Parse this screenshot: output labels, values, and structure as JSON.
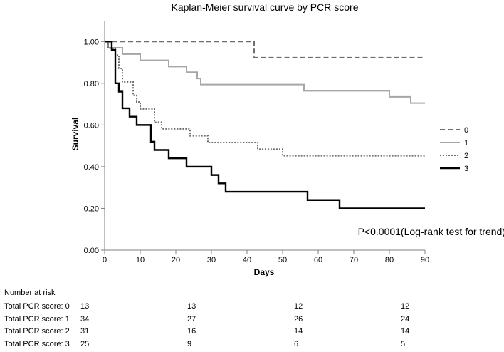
{
  "chart_data": {
    "type": "line",
    "title": "Kaplan-Meier survival curve by PCR score",
    "xlabel": "Days",
    "ylabel": "Survival",
    "xlim": [
      0,
      90
    ],
    "ylim": [
      0,
      1.1
    ],
    "xticks": [
      "0",
      "10",
      "20",
      "30",
      "40",
      "50",
      "60",
      "70",
      "80",
      "90"
    ],
    "yticks": [
      "0.00",
      "0.20",
      "0.40",
      "0.60",
      "0.80",
      "1.00"
    ],
    "xtick_values": [
      0,
      10,
      20,
      30,
      40,
      50,
      60,
      70,
      80,
      90
    ],
    "ytick_values": [
      0,
      0.2,
      0.4,
      0.6,
      0.8,
      1.0
    ],
    "grid": false,
    "legend_position": "right",
    "annotation": "P<0.0001(Log-rank test for trend)",
    "series": [
      {
        "name": "0",
        "color": "#6e6e6e",
        "dash": "dashed",
        "steps": [
          [
            0,
            1.0
          ],
          [
            42,
            0.923
          ],
          [
            90,
            0.923
          ]
        ]
      },
      {
        "name": "1",
        "color": "#a6a6a6",
        "dash": "solid",
        "steps": [
          [
            0,
            1.0
          ],
          [
            1,
            0.97
          ],
          [
            5,
            0.94
          ],
          [
            10,
            0.91
          ],
          [
            18,
            0.88
          ],
          [
            23,
            0.853
          ],
          [
            26,
            0.823
          ],
          [
            27,
            0.794
          ],
          [
            28,
            0.794
          ],
          [
            56,
            0.764
          ],
          [
            80,
            0.735
          ],
          [
            86,
            0.705
          ],
          [
            90,
            0.705
          ]
        ]
      },
      {
        "name": "2",
        "color": "#6e6e6e",
        "dash": "dotted",
        "steps": [
          [
            0,
            1.0
          ],
          [
            1,
            0.968
          ],
          [
            3,
            0.935
          ],
          [
            4,
            0.871
          ],
          [
            5,
            0.806
          ],
          [
            8,
            0.742
          ],
          [
            9,
            0.71
          ],
          [
            10,
            0.677
          ],
          [
            14,
            0.613
          ],
          [
            16,
            0.581
          ],
          [
            24,
            0.548
          ],
          [
            29,
            0.516
          ],
          [
            43,
            0.484
          ],
          [
            50,
            0.452
          ],
          [
            90,
            0.452
          ]
        ]
      },
      {
        "name": "3",
        "color": "#000000",
        "dash": "solid",
        "steps": [
          [
            0,
            1.0
          ],
          [
            2,
            0.96
          ],
          [
            3,
            0.8
          ],
          [
            4,
            0.76
          ],
          [
            5,
            0.68
          ],
          [
            7,
            0.64
          ],
          [
            9,
            0.6
          ],
          [
            13,
            0.52
          ],
          [
            14,
            0.48
          ],
          [
            18,
            0.44
          ],
          [
            23,
            0.4
          ],
          [
            30,
            0.36
          ],
          [
            32,
            0.32
          ],
          [
            34,
            0.28
          ],
          [
            57,
            0.24
          ],
          [
            66,
            0.2
          ],
          [
            90,
            0.2
          ]
        ]
      }
    ]
  },
  "risk_table": {
    "header": "Number at risk",
    "time_points": [
      0,
      30,
      60,
      90
    ],
    "rows": [
      {
        "label": "Total PCR score: 0",
        "values": [
          "13",
          "13",
          "12",
          "12"
        ]
      },
      {
        "label": "Total PCR score: 1",
        "values": [
          "34",
          "27",
          "26",
          "24"
        ]
      },
      {
        "label": "Total PCR score: 2",
        "values": [
          "31",
          "16",
          "14",
          "14"
        ]
      },
      {
        "label": "Total PCR score: 3",
        "values": [
          "25",
          "9",
          "6",
          "5"
        ]
      }
    ]
  }
}
